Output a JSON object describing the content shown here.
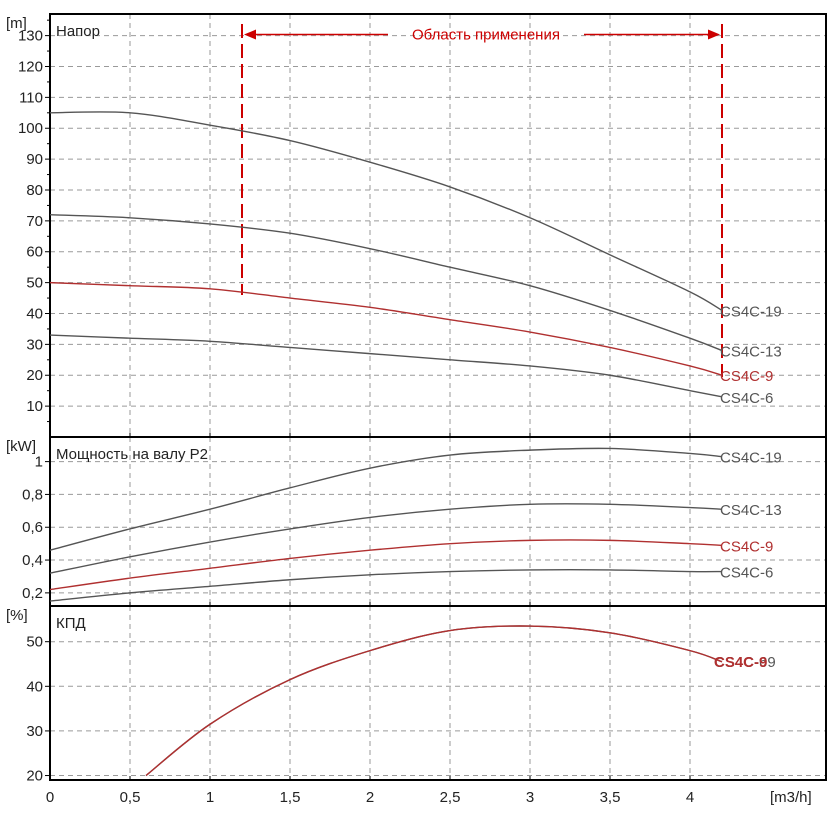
{
  "chart_data": [
    {
      "type": "line",
      "title": "Напор",
      "unit": "[m]",
      "ylim": [
        0,
        137
      ],
      "yticks": [
        10,
        20,
        30,
        40,
        50,
        60,
        70,
        80,
        90,
        100,
        110,
        120,
        130
      ],
      "xlim": [
        0,
        4.85
      ],
      "series": [
        {
          "name": "CS4C-19",
          "color": "#555555",
          "x": [
            0,
            0.5,
            1,
            1.5,
            2,
            2.5,
            3,
            3.5,
            4,
            4.2
          ],
          "values": [
            105,
            105,
            101,
            96,
            89,
            81,
            71,
            59,
            47,
            41
          ]
        },
        {
          "name": "CS4C-13",
          "color": "#555555",
          "x": [
            0,
            0.5,
            1,
            1.5,
            2,
            2.5,
            3,
            3.5,
            4,
            4.2
          ],
          "values": [
            72,
            71,
            69,
            66,
            61,
            55,
            49,
            41,
            32,
            28
          ]
        },
        {
          "name": "CS4C-9",
          "color": "#b03030",
          "x": [
            0,
            0.5,
            1,
            1.5,
            2,
            2.5,
            3,
            3.5,
            4,
            4.2
          ],
          "values": [
            50,
            49,
            48,
            45,
            42,
            38,
            34,
            29,
            23,
            20
          ]
        },
        {
          "name": "CS4C-6",
          "color": "#555555",
          "x": [
            0,
            0.5,
            1,
            1.5,
            2,
            2.5,
            3,
            3.5,
            4,
            4.2
          ],
          "values": [
            33,
            32,
            31,
            29,
            27,
            25,
            23,
            20,
            15,
            13
          ]
        }
      ],
      "annotation": {
        "label": "Область применения",
        "x_from": 1.2,
        "x_to": 4.2,
        "y_top": 131,
        "y_bottom": 46,
        "color": "#cc0000"
      }
    },
    {
      "type": "line",
      "title": "Мощность на валу P2",
      "unit": "[kW]",
      "ylim": [
        0.12,
        1.15
      ],
      "yticks": [
        0.2,
        0.4,
        0.6,
        0.8,
        1
      ],
      "ytick_labels": [
        "0,2",
        "0,4",
        "0,6",
        "0,8",
        "1"
      ],
      "xlim": [
        0,
        4.85
      ],
      "series": [
        {
          "name": "CS4C-19",
          "color": "#555555",
          "x": [
            0,
            0.5,
            1,
            1.5,
            2,
            2.5,
            3,
            3.5,
            4,
            4.2
          ],
          "values": [
            0.46,
            0.59,
            0.71,
            0.84,
            0.96,
            1.04,
            1.07,
            1.08,
            1.05,
            1.03
          ]
        },
        {
          "name": "CS4C-13",
          "color": "#555555",
          "x": [
            0,
            0.5,
            1,
            1.5,
            2,
            2.5,
            3,
            3.5,
            4,
            4.2
          ],
          "values": [
            0.32,
            0.42,
            0.51,
            0.59,
            0.66,
            0.71,
            0.74,
            0.74,
            0.72,
            0.71
          ]
        },
        {
          "name": "CS4C-9",
          "color": "#b03030",
          "x": [
            0,
            0.5,
            1,
            1.5,
            2,
            2.5,
            3,
            3.5,
            4,
            4.2
          ],
          "values": [
            0.22,
            0.29,
            0.35,
            0.41,
            0.46,
            0.5,
            0.52,
            0.52,
            0.5,
            0.49
          ]
        },
        {
          "name": "CS4C-6",
          "color": "#555555",
          "x": [
            0,
            0.5,
            1,
            1.5,
            2,
            2.5,
            3,
            3.5,
            4,
            4.2
          ],
          "values": [
            0.15,
            0.2,
            0.24,
            0.28,
            0.31,
            0.33,
            0.34,
            0.34,
            0.33,
            0.33
          ]
        }
      ]
    },
    {
      "type": "line",
      "title": "КПД",
      "unit": "[%]",
      "ylim": [
        19,
        58
      ],
      "yticks": [
        20,
        30,
        40,
        50
      ],
      "xlim": [
        0,
        4.85
      ],
      "xlabel": "[m3/h]",
      "xticks": [
        0,
        0.5,
        1,
        1.5,
        2,
        2.5,
        3,
        3.5,
        4
      ],
      "xtick_labels": [
        "0",
        "0,5",
        "1",
        "1,5",
        "2",
        "2,5",
        "3",
        "3,5",
        "4"
      ],
      "series": [
        {
          "name": "CS4C-6",
          "color": "#555555",
          "x": [
            0.6,
            1,
            1.5,
            2,
            2.5,
            3,
            3.5,
            4,
            4.2
          ],
          "values": [
            20,
            31.5,
            41.5,
            48,
            52.5,
            53.5,
            52,
            48,
            45.5
          ]
        },
        {
          "name": "CS4C-9",
          "color": "#b03030",
          "x": [
            0.6,
            1,
            1.5,
            2,
            2.5,
            3,
            3.5,
            4,
            4.2
          ],
          "values": [
            20,
            31.5,
            41.5,
            48,
            52.5,
            53.5,
            52,
            48,
            45.5
          ]
        }
      ],
      "overlapping_label": "CS4C-69"
    }
  ]
}
